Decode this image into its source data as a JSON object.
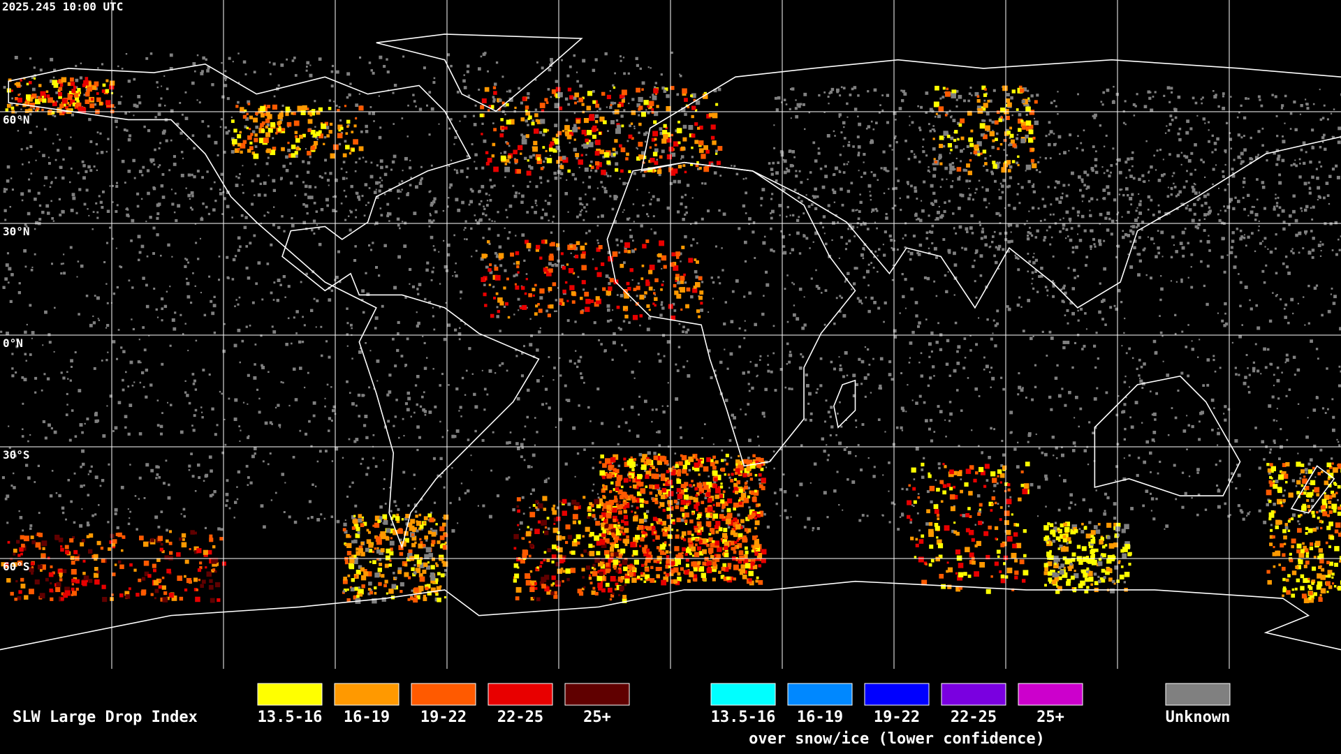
{
  "header": {
    "timestamp": "2025.245 10:00 UTC"
  },
  "map": {
    "latitude_labels": [
      "60°N",
      "30°N",
      "0°N",
      "30°S",
      "60°S"
    ]
  },
  "legend": {
    "title": "SLW Large Drop Index",
    "groups": [
      {
        "items": [
          {
            "label": "13.5-16",
            "color": "#ffff00"
          },
          {
            "label": "16-19",
            "color": "#ff9900"
          },
          {
            "label": "19-22",
            "color": "#ff5a00"
          },
          {
            "label": "22-25",
            "color": "#e80000"
          },
          {
            "label": "25+",
            "color": "#600000"
          }
        ]
      },
      {
        "note": "over snow/ice (lower confidence)",
        "items": [
          {
            "label": "13.5-16",
            "color": "#00ffff"
          },
          {
            "label": "16-19",
            "color": "#0088ff"
          },
          {
            "label": "19-22",
            "color": "#0000ff"
          },
          {
            "label": "22-25",
            "color": "#7a00e0"
          },
          {
            "label": "25+",
            "color": "#cc00cc"
          }
        ]
      },
      {
        "items": [
          {
            "label": "Unknown",
            "color": "#808080"
          }
        ]
      }
    ]
  }
}
